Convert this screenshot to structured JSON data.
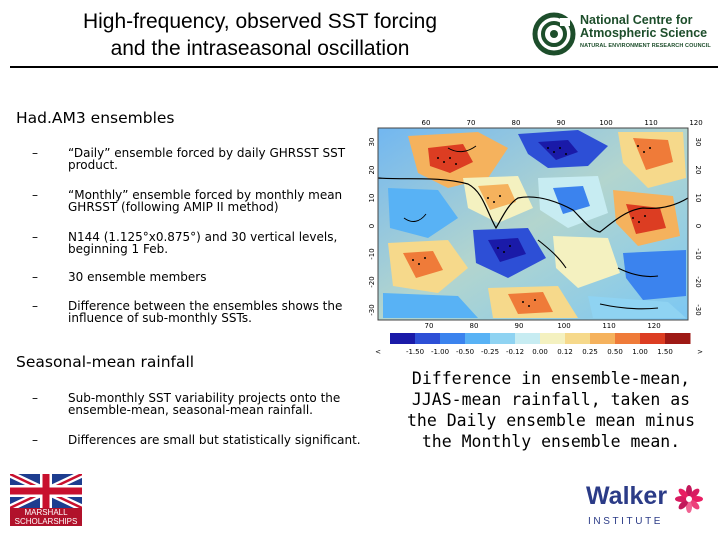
{
  "title": {
    "line1": "High-frequency, observed SST forcing",
    "line2": "and the intraseasonal oscillation"
  },
  "ncas_logo": {
    "line1": "National Centre for",
    "line2": "Atmospheric Science",
    "subtitle": "NATURAL ENVIRONMENT RESEARCH COUNCIL",
    "color": "#1d4e2b"
  },
  "section1": {
    "heading": "Had.AM3 ensembles",
    "bullets": [
      {
        "dash": "–",
        "text": "“Daily” ensemble forced by daily GHRSST SST product."
      },
      {
        "dash": "–",
        "text": "“Monthly” ensemble forced by monthly mean GHRSST (following AMIP II method)"
      },
      {
        "dash": "–",
        "text": "N144 (1.125°x0.875°) and 30 vertical levels, beginning 1 Feb."
      },
      {
        "dash": "–",
        "text": "30 ensemble members"
      },
      {
        "dash": "–",
        "text": "Difference between the ensembles shows the influence of sub-monthly SSTs."
      }
    ]
  },
  "section2": {
    "heading": "Seasonal-mean rainfall",
    "bullets": [
      {
        "dash": "–",
        "text": "Sub-monthly SST variability projects onto the ensemble-mean, seasonal-mean rainfall."
      },
      {
        "dash": "–",
        "text": "Differences are small but statistically significant."
      }
    ]
  },
  "map": {
    "top_lon_labels": [
      "60",
      "70",
      "80",
      "90",
      "100",
      "110",
      "120"
    ],
    "bottom_lon_labels": [
      "70",
      "80",
      "90",
      "100",
      "110",
      "120"
    ],
    "lat_labels": [
      "30",
      "20",
      "10",
      "0",
      "-10",
      "-20",
      "-30"
    ],
    "colorbar_labels": [
      "<",
      "-1.50",
      "-1.00",
      "-0.50",
      "-0.25",
      "-0.12",
      "0.00",
      "0.12",
      "0.25",
      "0.50",
      "1.00",
      "1.50",
      ">"
    ],
    "colorbar_colors": [
      "#1a1aa8",
      "#2d4fd6",
      "#3b83ee",
      "#58b2f5",
      "#8fd3f2",
      "#c7ecf2",
      "#f4f1c0",
      "#f6d98b",
      "#f5b25d",
      "#ef7b39",
      "#dc3d22",
      "#9e1915"
    ]
  },
  "caption": {
    "line1": "Difference in ensemble-mean,",
    "line2": "JJAS-mean rainfall, taken as",
    "line3": "the Daily ensemble mean minus",
    "line4": "the Monthly ensemble mean."
  },
  "marshall_logo": {
    "line1": "MARSHALL",
    "line2": "SCHOLARSHIPS"
  },
  "walker_logo": {
    "name": "Walker",
    "institute": "INSTITUTE",
    "color": "#2b3b87"
  }
}
